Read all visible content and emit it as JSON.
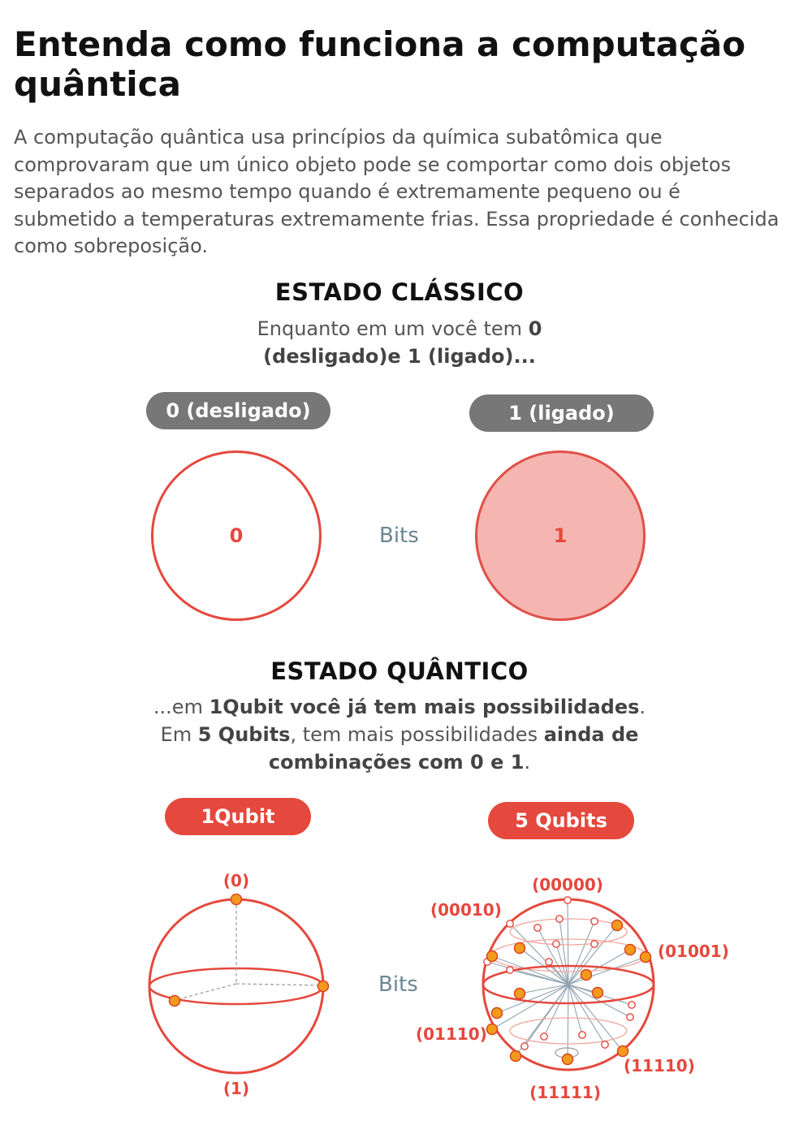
{
  "title": "Entenda como funciona a computação quântica",
  "intro": "A computação quântica usa princípios da química subatômica que comprovaram que um único objeto pode se comportar como dois objetos separados ao mesmo tempo quando é extremamente pequeno ou é submetido a temperaturas extremamente frias. Essa propriedade é conhecida como sobreposição.",
  "classic": {
    "title": "ESTADO CLÁSSICO",
    "sub_1": "Enquanto em um você tem ",
    "sub_2": "0",
    "sub_3": "(desligado)e 1 (ligado)...",
    "left_label": "0 (desligado)",
    "right_label": "1 (ligado)",
    "left_value": "0",
    "right_value": "1",
    "center_label": "Bits"
  },
  "quantum": {
    "title": "ESTADO QUÂNTICO",
    "sub_1": "...em ",
    "sub_2": "1Qubit você já tem mais possibilidades",
    "sub_3": ".",
    "sub_4": "Em ",
    "sub_5": "5 Qubits",
    "sub_6": ", tem mais possibilidades ",
    "sub_7": "ainda de",
    "sub_8": "combinações com 0 e 1",
    "sub_9": ".",
    "left_label": "1Qubit",
    "right_label": "5 Qubits",
    "center_label": "Bits",
    "qubit_top": "(0)",
    "qubit_bottom": "(1)",
    "states": {
      "s00000": "(00000)",
      "s00010": "(00010)",
      "s01001": "(01001)",
      "s01110": "(01110)",
      "s11110": "(11110)",
      "s11111": "(11111)"
    }
  },
  "colors": {
    "accent": "#e5483d",
    "pill_gray": "#777777",
    "on_fill": "#f5b6b1",
    "dot": "#f39a1e",
    "bits_text": "#6c8593"
  }
}
